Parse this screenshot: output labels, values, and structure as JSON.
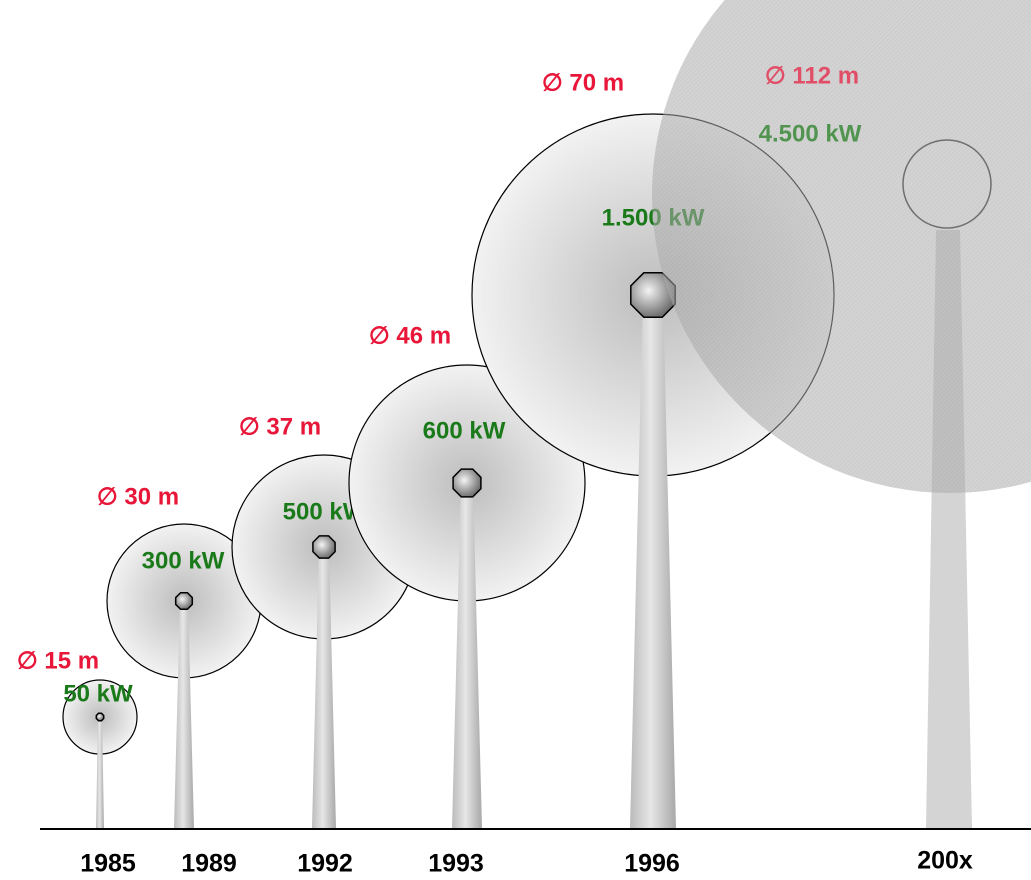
{
  "turbines": [
    {
      "year": "1985",
      "diameter": "∅ 15 m",
      "power": "50 kW"
    },
    {
      "year": "1989",
      "diameter": "∅ 30 m",
      "power": "300 kW"
    },
    {
      "year": "1992",
      "diameter": "∅ 37 m",
      "power": "500 kW"
    },
    {
      "year": "1993",
      "diameter": "∅ 46 m",
      "power": "600 kW"
    },
    {
      "year": "1996",
      "diameter": "∅ 70 m",
      "power": "1.500 kW"
    },
    {
      "year": "200x",
      "diameter": "∅ 112 m",
      "power": "4.500 kW"
    }
  ]
}
